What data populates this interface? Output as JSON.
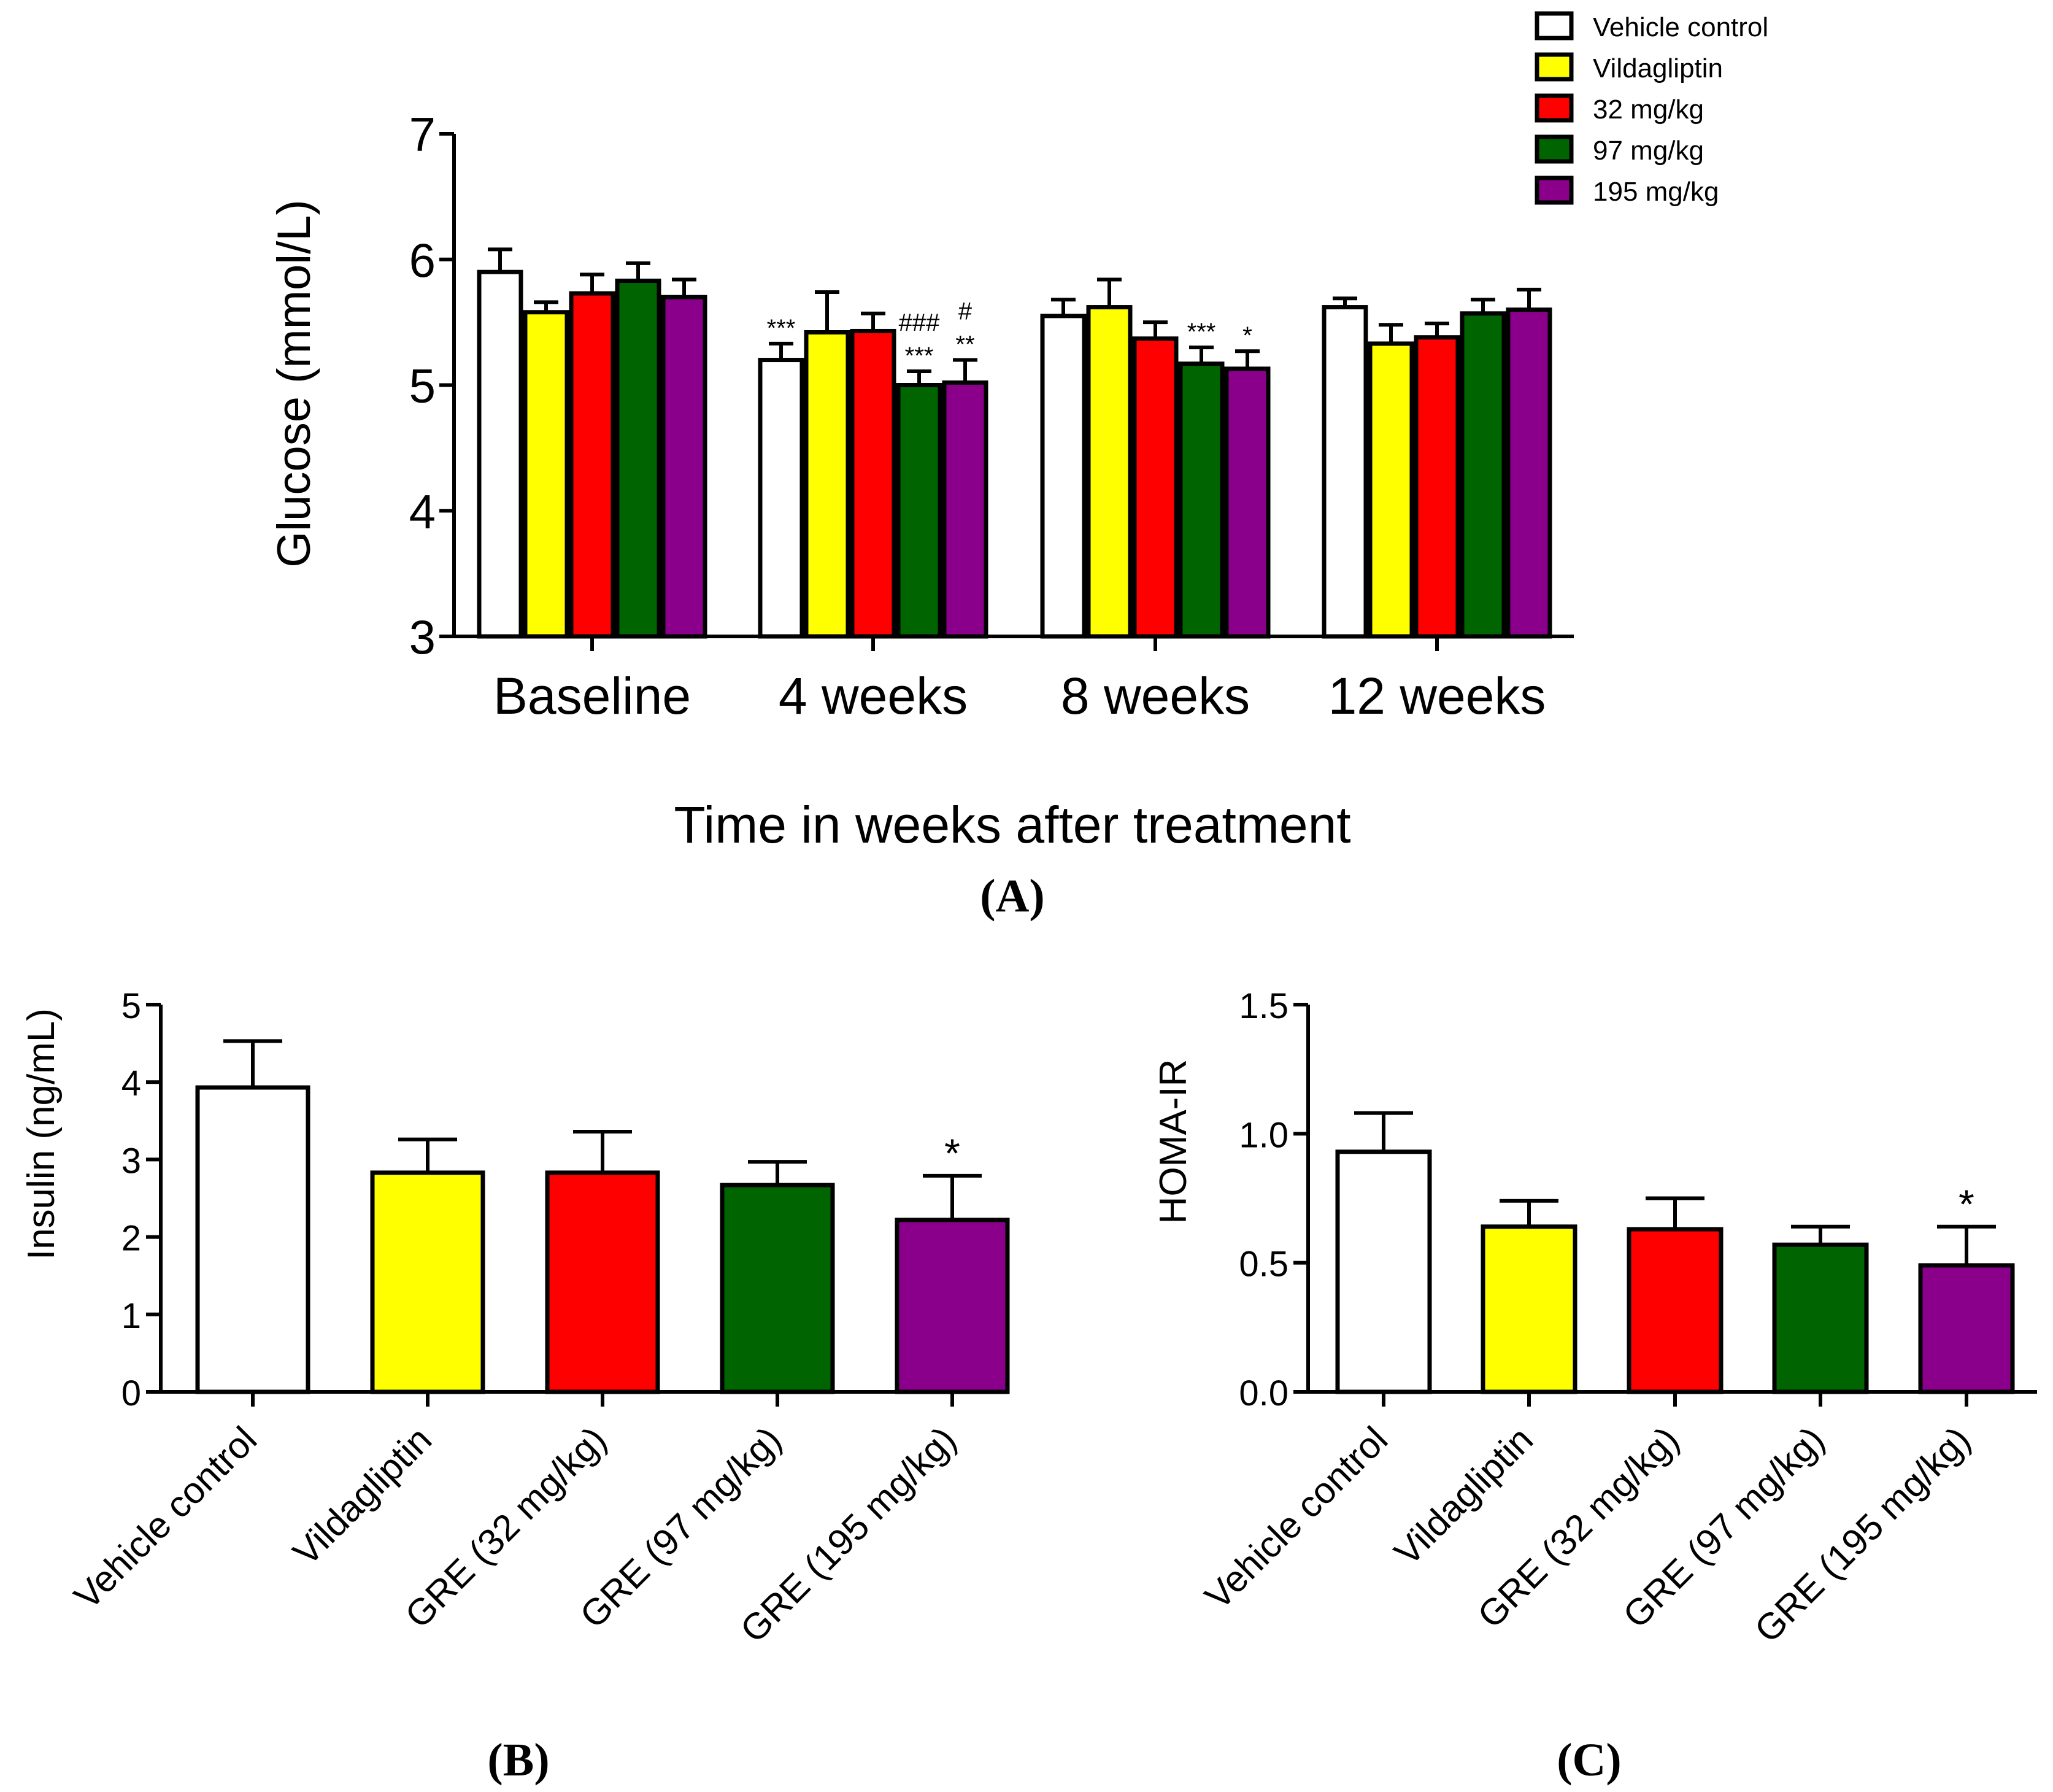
{
  "chart_data": [
    {
      "id": "A",
      "type": "bar",
      "panel_label": "(A)",
      "ylabel": "Glucose (mmol/L)",
      "xlabel": "Time in weeks after treatment",
      "ylim": [
        3,
        7
      ],
      "yticks": [
        "3",
        "4",
        "5",
        "6",
        "7"
      ],
      "categories": [
        "Baseline",
        "4 weeks",
        "8 weeks",
        "12 weeks"
      ],
      "series": [
        {
          "name": "Vehicle control",
          "color": "#ffffff",
          "values": [
            5.9,
            5.2,
            5.55,
            5.62
          ],
          "errors": [
            0.18,
            0.13,
            0.13,
            0.07
          ]
        },
        {
          "name": "Vildagliptin",
          "color": "#ffff00",
          "values": [
            5.58,
            5.42,
            5.62,
            5.33
          ],
          "errors": [
            0.08,
            0.32,
            0.22,
            0.15
          ]
        },
        {
          "name": "32 mg/kg",
          "color": "#ff0000",
          "values": [
            5.73,
            5.43,
            5.37,
            5.38
          ],
          "errors": [
            0.15,
            0.14,
            0.13,
            0.11
          ]
        },
        {
          "name": "97 mg/kg",
          "color": "#006400",
          "values": [
            5.83,
            5.0,
            5.17,
            5.57
          ],
          "errors": [
            0.14,
            0.11,
            0.13,
            0.11
          ]
        },
        {
          "name": "195 mg/kg",
          "color": "#8b008b",
          "values": [
            5.7,
            5.02,
            5.13,
            5.6
          ],
          "errors": [
            0.14,
            0.18,
            0.14,
            0.16
          ]
        }
      ],
      "annotations": [
        {
          "cat": 1,
          "series": 0,
          "lines": [
            "***"
          ]
        },
        {
          "cat": 1,
          "series": 3,
          "lines": [
            "###",
            "***"
          ]
        },
        {
          "cat": 1,
          "series": 4,
          "lines": [
            "#",
            "**"
          ]
        },
        {
          "cat": 2,
          "series": 3,
          "lines": [
            "***"
          ]
        },
        {
          "cat": 2,
          "series": 4,
          "lines": [
            "*"
          ]
        }
      ],
      "legend_position": "top-right"
    },
    {
      "id": "B",
      "type": "bar",
      "panel_label": "(B)",
      "ylabel": "Insulin (ng/mL)",
      "ylim": [
        0,
        5
      ],
      "yticks": [
        "0",
        "1",
        "2",
        "3",
        "4",
        "5"
      ],
      "categories": [
        "Vehicle control",
        "Vildagliptin",
        "GRE (32 mg/kg)",
        "GRE (97 mg/kg)",
        "GRE (195 mg/kg)"
      ],
      "colors": [
        "#ffffff",
        "#ffff00",
        "#ff0000",
        "#006400",
        "#8b008b"
      ],
      "values": [
        3.93,
        2.83,
        2.83,
        2.67,
        2.22
      ],
      "errors": [
        0.6,
        0.43,
        0.53,
        0.3,
        0.57
      ],
      "annotations": [
        {
          "index": 4,
          "text": "*"
        }
      ]
    },
    {
      "id": "C",
      "type": "bar",
      "panel_label": "(C)",
      "ylabel": "HOMA-IR",
      "ylim": [
        0,
        1.5
      ],
      "yticks": [
        "0.0",
        "0.5",
        "1.0",
        "1.5"
      ],
      "categories": [
        "Vehicle control",
        "Vildagliptin",
        "GRE (32 mg/kg)",
        "GRE (97 mg/kg)",
        "GRE (195 mg/kg)"
      ],
      "colors": [
        "#ffffff",
        "#ffff00",
        "#ff0000",
        "#006400",
        "#8b008b"
      ],
      "values": [
        0.93,
        0.64,
        0.63,
        0.57,
        0.49
      ],
      "errors": [
        0.15,
        0.1,
        0.12,
        0.07,
        0.15
      ],
      "annotations": [
        {
          "index": 4,
          "text": "*"
        }
      ]
    }
  ]
}
